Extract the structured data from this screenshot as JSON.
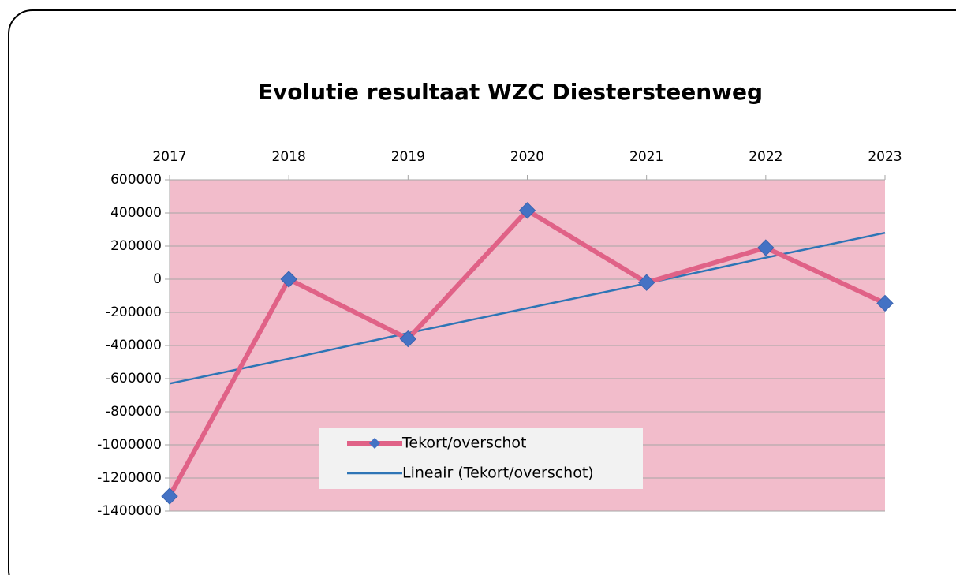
{
  "chart_data": {
    "type": "line",
    "title": "Evolutie resultaat WZC Diestersteenweg",
    "categories": [
      "2017",
      "2018",
      "2019",
      "2020",
      "2021",
      "2022",
      "2023"
    ],
    "series": [
      {
        "name": "Tekort/overschot",
        "color": "#e06287",
        "marker_color": "#4472c4",
        "values": [
          -1310000,
          0,
          -360000,
          415000,
          -20000,
          190000,
          -145000
        ]
      },
      {
        "name": "Lineair (Tekort/overschot)",
        "color": "#2e75b6",
        "values": [
          -630000,
          -480000,
          -325000,
          -175000,
          -25000,
          130000,
          280000
        ]
      }
    ],
    "ylim": [
      -1400000,
      600000
    ],
    "yticks": [
      600000,
      400000,
      200000,
      0,
      -200000,
      -400000,
      -600000,
      -800000,
      -1000000,
      -1200000,
      -1400000
    ],
    "grid": true,
    "plot_background": "#f2bccb",
    "legend": "bottom"
  }
}
